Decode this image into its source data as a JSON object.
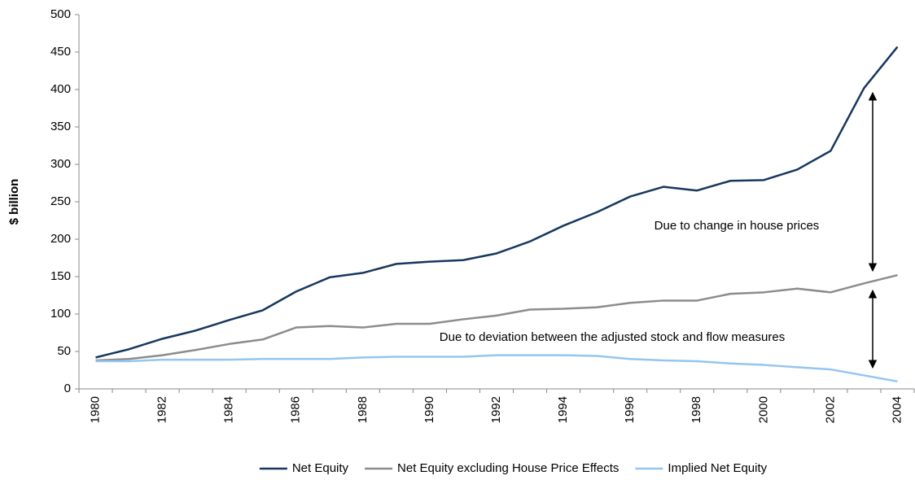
{
  "chart_data": {
    "type": "line",
    "y_label": "$ billion",
    "categories": [
      "1980",
      null,
      "1982",
      null,
      "1984",
      null,
      "1986",
      null,
      "1988",
      null,
      "1990",
      null,
      "1992",
      null,
      "1994",
      null,
      "1996",
      null,
      "1998",
      null,
      "2000",
      null,
      "2002",
      null,
      "2004"
    ],
    "series": [
      {
        "name": "Net Equity",
        "color": "#17375e",
        "values": [
          42,
          53,
          67,
          78,
          92,
          105,
          130,
          149,
          155,
          167,
          170,
          172,
          181,
          197,
          218,
          236,
          257,
          270,
          265,
          278,
          279,
          293,
          318,
          402,
          457
        ]
      },
      {
        "name": "Net Equity excluding House Price Effects",
        "color": "#8c8c8c",
        "values": [
          38,
          40,
          45,
          52,
          60,
          66,
          82,
          84,
          82,
          87,
          87,
          93,
          98,
          106,
          107,
          109,
          115,
          118,
          118,
          127,
          129,
          134,
          129,
          141,
          152
        ]
      },
      {
        "name": "Implied Net Equity",
        "color": "#95c5f0",
        "values": [
          37,
          37,
          39,
          39,
          39,
          40,
          40,
          40,
          42,
          43,
          43,
          43,
          45,
          45,
          45,
          44,
          40,
          38,
          37,
          34,
          32,
          29,
          26,
          18,
          10
        ]
      }
    ],
    "ylim": [
      0,
      500
    ],
    "yticks": [
      0,
      50,
      100,
      150,
      200,
      250,
      300,
      350,
      400,
      450,
      500
    ],
    "annotations": [
      "Due to change in house prices",
      "Due to deviation between the adjusted stock and flow measures"
    ],
    "legend": "bottom"
  }
}
